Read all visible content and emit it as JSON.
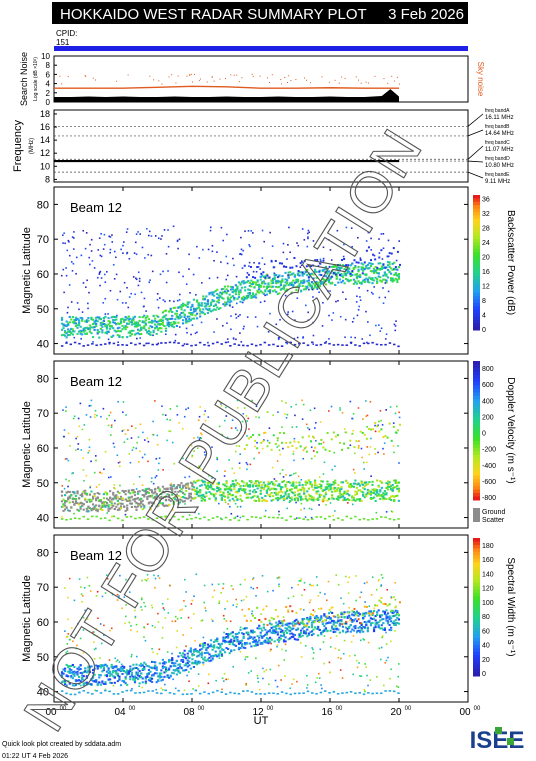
{
  "header": {
    "title": "HOKKAIDO WEST RADAR SUMMARY PLOT",
    "date": "3 Feb 2026",
    "cpid_label": "CPID:",
    "cpid_value": "151",
    "colors": {
      "title_bg": "#000000",
      "cpid_bar": "#1f1fe6"
    }
  },
  "footer": {
    "credit": "Quick look plot created by sddata.adm",
    "created": "01:22 UT  4 Feb 2026",
    "logo_text": "ISEE",
    "watermark": "NOT FOR PUBLICATION"
  },
  "x_axis": {
    "label": "UT",
    "range": [
      0,
      24
    ],
    "ticks": [
      {
        "h": 0,
        "label": "00",
        "sup": "00"
      },
      {
        "h": 4,
        "label": "04",
        "sup": "00"
      },
      {
        "h": 8,
        "label": "08",
        "sup": "00"
      },
      {
        "h": 12,
        "label": "12",
        "sup": "00"
      },
      {
        "h": 16,
        "label": "16",
        "sup": "00"
      },
      {
        "h": 20,
        "label": "20",
        "sup": "00"
      },
      {
        "h": 24,
        "label": "00",
        "sup": "00"
      }
    ]
  },
  "chart_data": [
    {
      "type": "area",
      "name": "search_noise",
      "ylabel": "Search Noise",
      "ylabel_sub": "Log scale (dB ×10³)",
      "ylim": [
        0,
        10
      ],
      "yticks": [
        "0",
        "2",
        "4",
        "6",
        "8",
        "10"
      ],
      "right_label": "Sky noise",
      "colors": {
        "fill": "#000000",
        "line": "#e05a1e"
      },
      "series": [
        {
          "name": "search noise",
          "x": [
            0,
            1,
            2,
            3,
            4,
            5,
            6,
            7,
            8,
            9,
            10,
            11,
            12,
            13,
            14,
            15,
            16,
            17,
            18,
            19,
            19.5,
            20
          ],
          "values": [
            1.1,
            1.1,
            1.2,
            1.1,
            1.2,
            1.1,
            1.1,
            1.2,
            1.1,
            1.1,
            1.2,
            1.1,
            1.1,
            1.2,
            1.1,
            1.1,
            1.2,
            1.1,
            1.1,
            1.3,
            2.8,
            1.2
          ]
        },
        {
          "name": "sky noise",
          "x": [
            0,
            2,
            4,
            6,
            8,
            10,
            12,
            14,
            16,
            18,
            20
          ],
          "values": [
            3.0,
            3.0,
            3.0,
            3.2,
            3.4,
            3.3,
            3.0,
            3.0,
            3.1,
            3.0,
            3.0
          ]
        }
      ]
    },
    {
      "type": "line",
      "name": "frequency",
      "ylabel": "Frequency",
      "ylabel_sub": "(MHz)",
      "ylim": [
        7.6,
        18.6
      ],
      "yticks": [
        "8",
        "10",
        "12",
        "14",
        "16",
        "18"
      ],
      "bands": [
        {
          "label": "freq bandA",
          "value_text": "16.11 MHz",
          "freq": 16.11
        },
        {
          "label": "freq bandB",
          "value_text": "14.64 MHz",
          "freq": 14.64
        },
        {
          "label": "freq bandC",
          "value_text": "11.07 MHz",
          "freq": 11.07
        },
        {
          "label": "freq bandD",
          "value_text": "10.80 MHz",
          "freq": 10.8
        },
        {
          "label": "freq bandE",
          "value_text": "9.11 MHz",
          "freq": 9.11
        }
      ],
      "series": [
        {
          "name": "operating frequency",
          "x": [
            0,
            20
          ],
          "values": [
            10.8,
            10.8
          ]
        }
      ]
    },
    {
      "type": "heatmap",
      "name": "backscatter_power",
      "panel_label": "Beam 12",
      "ylabel": "Magnetic Latitude",
      "ylim": [
        37,
        85
      ],
      "yticks": [
        "40",
        "50",
        "60",
        "70",
        "80"
      ],
      "colorbar": {
        "title": "Backscatter Power (dB)",
        "ticks": [
          "0",
          "4",
          "8",
          "12",
          "16",
          "20",
          "24",
          "28",
          "32",
          "36"
        ],
        "range": [
          0,
          36
        ]
      },
      "features": [
        {
          "name": "main scatter band",
          "ut": [
            0.5,
            4,
            6,
            8,
            10,
            12,
            14,
            16,
            18,
            20
          ],
          "lat": [
            45,
            45,
            46,
            50,
            54,
            57,
            58,
            60,
            60.5,
            61
          ],
          "value": 10
        },
        {
          "name": "high-latitude scatter",
          "ut": [
            12,
            14,
            16,
            18,
            20
          ],
          "lat": [
            66,
            65,
            63,
            62,
            66
          ],
          "value": 4
        },
        {
          "name": "low-latitude echoes",
          "ut": [
            0.5,
            20
          ],
          "lat": [
            40,
            40
          ],
          "value": 3
        }
      ]
    },
    {
      "type": "heatmap",
      "name": "doppler_velocity",
      "panel_label": "Beam 12",
      "ylabel": "Magnetic Latitude",
      "ylim": [
        37,
        85
      ],
      "yticks": [
        "40",
        "50",
        "60",
        "70",
        "80"
      ],
      "colorbar": {
        "title": "Doppler Velocity (m s⁻¹)",
        "ticks": [
          "800",
          "600",
          "400",
          "200",
          "0",
          "-200",
          "-400",
          "-600",
          "-800"
        ],
        "range": [
          -800,
          800
        ],
        "extra_label": "Ground Scatter"
      },
      "features": [
        {
          "name": "ground scatter band",
          "ut": [
            0.5,
            4,
            6,
            8
          ],
          "lat": [
            45,
            45,
            46,
            48
          ],
          "value": 0
        },
        {
          "name": "main scatter band",
          "ut": [
            8,
            10,
            12,
            14,
            16,
            18,
            20
          ],
          "lat": [
            50,
            54,
            56,
            58,
            59,
            60,
            61
          ],
          "value": -100
        }
      ]
    },
    {
      "type": "heatmap",
      "name": "spectral_width",
      "panel_label": "Beam 12",
      "ylabel": "Magnetic Latitude",
      "ylim": [
        37,
        85
      ],
      "yticks": [
        "40",
        "50",
        "60",
        "70",
        "80"
      ],
      "colorbar": {
        "title": "Spectral Width (m s⁻¹)",
        "ticks": [
          "180",
          "160",
          "140",
          "120",
          "100",
          "80",
          "60",
          "40",
          "20",
          "0"
        ],
        "range": [
          0,
          180
        ]
      },
      "features": [
        {
          "name": "main scatter band",
          "ut": [
            0.5,
            4,
            6,
            8,
            10,
            12,
            14,
            16,
            18,
            20
          ],
          "lat": [
            45,
            45,
            46,
            50,
            54,
            57,
            58,
            60,
            60.5,
            61
          ],
          "value": 40
        },
        {
          "name": "poleward edge",
          "ut": [
            10,
            12,
            14,
            16,
            18,
            20
          ],
          "lat": [
            60,
            62,
            60,
            61,
            62,
            63
          ],
          "value": 140
        }
      ]
    }
  ]
}
